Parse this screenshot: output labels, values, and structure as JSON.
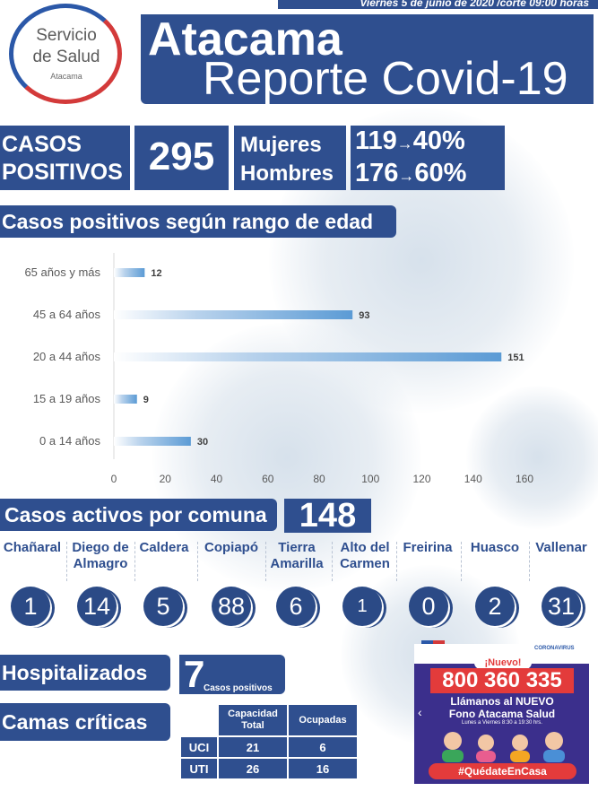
{
  "header": {
    "logo_line1": "Servicio",
    "logo_line2": "de Salud",
    "logo_sub": "Atacama",
    "date": "Viernes 5 de junio de 2020 /corte 09:00 horas",
    "title_region": "Atacama",
    "title_report": "Reporte Covid-19"
  },
  "stats": {
    "casos_label_1": "CASOS",
    "casos_label_2": "POSITIVOS",
    "total": "295",
    "mujeres_label": "Mujeres",
    "hombres_label": "Hombres",
    "mujeres_count": "119",
    "mujeres_pct": "40%",
    "hombres_count": "176",
    "hombres_pct": "60%",
    "arrow": "→"
  },
  "sections": {
    "edad": "Casos positivos según rango de edad",
    "activos": "Casos activos por comuna",
    "activos_total": "148",
    "hospitalizados": "Hospitalizados",
    "camas": "Camas críticas"
  },
  "chart_data": {
    "type": "bar",
    "orientation": "horizontal",
    "categories": [
      "65 años y más",
      "45 a 64 años",
      "20 a 44 años",
      "15 a 19 años",
      "0 a 14 años"
    ],
    "values": [
      12,
      93,
      151,
      9,
      30
    ],
    "xlim": [
      0,
      160
    ],
    "xticks": [
      0,
      20,
      40,
      60,
      80,
      100,
      120,
      140,
      160
    ],
    "title": "",
    "xlabel": "",
    "ylabel": "",
    "bar_color": "#5b9bd5",
    "grid": false
  },
  "comunas": [
    {
      "name": "Chañaral",
      "value": "1"
    },
    {
      "name": "Diego de Almagro",
      "value": "14"
    },
    {
      "name": "Caldera",
      "value": "5"
    },
    {
      "name": "Copiapó",
      "value": "88"
    },
    {
      "name": "Tierra Amarilla",
      "value": "6"
    },
    {
      "name": "Alto del Carmen",
      "value": "1"
    },
    {
      "name": "Freirina",
      "value": "0"
    },
    {
      "name": "Huasco",
      "value": "2"
    },
    {
      "name": "Vallenar",
      "value": "31"
    }
  ],
  "hospitalizados": {
    "value": "7",
    "sub": "Casos positivos"
  },
  "camas": {
    "col1": "Capacidad Total",
    "col2": "Ocupadas",
    "rows": [
      {
        "label": "UCI",
        "capacidad": "21",
        "ocupadas": "6"
      },
      {
        "label": "UTI",
        "capacidad": "26",
        "ocupadas": "16"
      }
    ]
  },
  "ad": {
    "brand": "CORONAVIRUS",
    "nuevo": "¡Nuevo!",
    "phone": "800 360 335",
    "line1": "Llámanos al NUEVO",
    "line2": "Fono Atacama Salud",
    "line3": "Lunes a Viernes 8:30 a 19:30 hrs.",
    "hashtag": "#QuédateEnCasa",
    "prev": "‹"
  },
  "colors": {
    "navy": "#2f4f8f",
    "bar": "#5b9bd5",
    "alert_red": "#e33b3b"
  }
}
